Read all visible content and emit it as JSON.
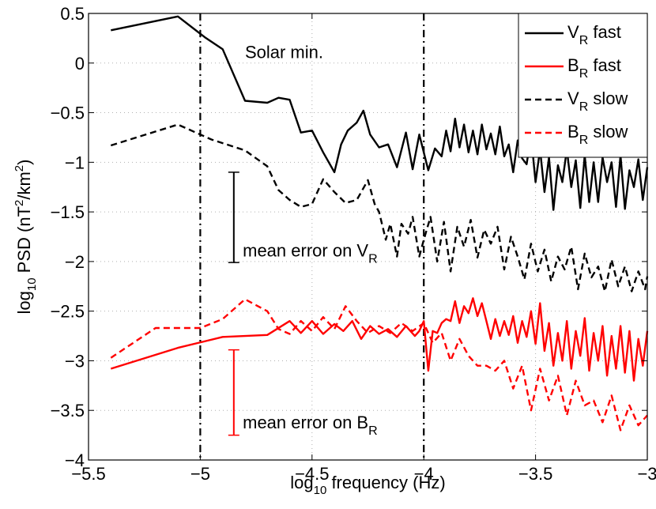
{
  "chart_data": {
    "type": "line",
    "title": "",
    "xlabel": {
      "prefix": "log",
      "sub": "10",
      "suffix": " frequency (Hz)"
    },
    "ylabel": {
      "prefix": "log",
      "sub": "10",
      "mid": " PSD (nT",
      "sup1": "2",
      "mid2": "/km",
      "sup2": "2",
      "suffix": ")"
    },
    "xlim": [
      -5.5,
      -3
    ],
    "ylim": [
      -4,
      0.5
    ],
    "xticks": [
      -5.5,
      -5,
      -4.5,
      -4,
      -3.5,
      -3
    ],
    "xtick_labels": [
      "−5.5",
      "−5",
      "−4.5",
      "−4",
      "−3.5",
      "−3"
    ],
    "yticks": [
      0.5,
      0,
      -0.5,
      -1,
      -1.5,
      -2,
      -2.5,
      -3,
      -3.5,
      -4
    ],
    "ytick_labels": [
      "0.5",
      "0",
      "−0.5",
      "−1",
      "−1.5",
      "−2",
      "−2.5",
      "−3",
      "−3.5",
      "−4"
    ],
    "grid": true,
    "vlines": [
      -5,
      -4
    ],
    "legend": {
      "placement": "top-right",
      "entries": [
        {
          "main": "V",
          "sub": "R",
          "rest": " fast",
          "color": "#000000",
          "dash": "solid"
        },
        {
          "main": "B",
          "sub": "R",
          "rest": " fast",
          "color": "#ff0000",
          "dash": "solid"
        },
        {
          "main": "V",
          "sub": "R",
          "rest": " slow",
          "color": "#000000",
          "dash": "dashed"
        },
        {
          "main": "B",
          "sub": "R",
          "rest": " slow",
          "color": "#ff0000",
          "dash": "dashed"
        }
      ]
    },
    "annotations": {
      "solar": {
        "text": "Solar min.",
        "x": -4.8,
        "y": 0.05
      },
      "err_v": {
        "prefix": "mean error on V",
        "sub": "R",
        "x": -4.81,
        "y": -1.95
      },
      "err_b": {
        "prefix": "mean error on B",
        "sub": "R",
        "x": -4.81,
        "y": -3.68
      }
    },
    "error_bars": [
      {
        "name": "mean error on V_R",
        "x": -4.85,
        "y1": -1.1,
        "y2": -2.01,
        "color": "#000000"
      },
      {
        "name": "mean error on B_R",
        "x": -4.85,
        "y1": -2.89,
        "y2": -3.75,
        "color": "#ff0000"
      }
    ],
    "series": [
      {
        "name": "V_R fast",
        "color": "#000000",
        "dash": "solid",
        "x": [
          -5.4,
          -5.1,
          -4.98,
          -4.9,
          -4.8,
          -4.7,
          -4.65,
          -4.6,
          -4.55,
          -4.5,
          -4.45,
          -4.4,
          -4.37,
          -4.34,
          -4.3,
          -4.27,
          -4.24,
          -4.2,
          -4.16,
          -4.12,
          -4.08,
          -4.05,
          -4.02,
          -4.0,
          -3.98,
          -3.95,
          -3.92,
          -3.9,
          -3.88,
          -3.86,
          -3.84,
          -3.82,
          -3.8,
          -3.78,
          -3.76,
          -3.74,
          -3.72,
          -3.7,
          -3.68,
          -3.66,
          -3.64,
          -3.62,
          -3.6,
          -3.58,
          -3.56,
          -3.54,
          -3.52,
          -3.5,
          -3.48,
          -3.46,
          -3.44,
          -3.42,
          -3.4,
          -3.38,
          -3.36,
          -3.34,
          -3.32,
          -3.3,
          -3.28,
          -3.26,
          -3.24,
          -3.22,
          -3.2,
          -3.18,
          -3.16,
          -3.14,
          -3.12,
          -3.1,
          -3.08,
          -3.06,
          -3.04,
          -3.02,
          -3.0
        ],
        "y": [
          0.33,
          0.47,
          0.26,
          0.14,
          -0.38,
          -0.4,
          -0.35,
          -0.37,
          -0.7,
          -0.68,
          -0.9,
          -1.1,
          -0.82,
          -0.68,
          -0.6,
          -0.48,
          -0.72,
          -0.85,
          -0.82,
          -1.05,
          -0.7,
          -1.07,
          -0.72,
          -0.9,
          -1.08,
          -0.86,
          -0.94,
          -0.68,
          -0.89,
          -0.56,
          -0.85,
          -0.62,
          -0.9,
          -0.68,
          -0.92,
          -0.62,
          -0.87,
          -0.71,
          -0.92,
          -0.64,
          -0.94,
          -0.82,
          -1.1,
          -0.78,
          -0.96,
          -1.02,
          -0.73,
          -1.2,
          -0.87,
          -1.3,
          -0.95,
          -1.48,
          -1.03,
          -1.2,
          -0.87,
          -1.25,
          -0.98,
          -1.46,
          -0.93,
          -1.4,
          -1.0,
          -1.4,
          -0.95,
          -1.2,
          -1.0,
          -1.45,
          -0.93,
          -1.47,
          -1.08,
          -1.25,
          -0.97,
          -1.38,
          -1.05
        ]
      },
      {
        "name": "B_R fast",
        "color": "#ff0000",
        "dash": "solid",
        "x": [
          -5.4,
          -5.1,
          -4.9,
          -4.7,
          -4.6,
          -4.55,
          -4.5,
          -4.45,
          -4.4,
          -4.36,
          -4.32,
          -4.28,
          -4.24,
          -4.2,
          -4.16,
          -4.12,
          -4.08,
          -4.04,
          -4.02,
          -4.0,
          -3.98,
          -3.96,
          -3.94,
          -3.92,
          -3.9,
          -3.88,
          -3.86,
          -3.84,
          -3.82,
          -3.8,
          -3.78,
          -3.76,
          -3.74,
          -3.72,
          -3.7,
          -3.68,
          -3.66,
          -3.64,
          -3.62,
          -3.6,
          -3.58,
          -3.56,
          -3.54,
          -3.52,
          -3.5,
          -3.48,
          -3.46,
          -3.44,
          -3.42,
          -3.4,
          -3.38,
          -3.36,
          -3.34,
          -3.32,
          -3.3,
          -3.28,
          -3.26,
          -3.24,
          -3.22,
          -3.2,
          -3.18,
          -3.16,
          -3.14,
          -3.12,
          -3.1,
          -3.08,
          -3.06,
          -3.04,
          -3.02,
          -3.0
        ],
        "y": [
          -3.08,
          -2.87,
          -2.76,
          -2.74,
          -2.6,
          -2.72,
          -2.6,
          -2.73,
          -2.63,
          -2.7,
          -2.6,
          -2.78,
          -2.65,
          -2.73,
          -2.68,
          -2.76,
          -2.65,
          -2.75,
          -2.7,
          -2.6,
          -3.1,
          -2.7,
          -2.72,
          -2.62,
          -2.58,
          -2.6,
          -2.4,
          -2.62,
          -2.45,
          -2.52,
          -2.37,
          -2.55,
          -2.42,
          -2.6,
          -2.78,
          -2.58,
          -2.75,
          -2.6,
          -2.74,
          -2.55,
          -2.82,
          -2.6,
          -2.76,
          -2.5,
          -2.83,
          -2.42,
          -2.9,
          -2.62,
          -3.05,
          -2.72,
          -3.0,
          -2.6,
          -3.08,
          -2.7,
          -2.95,
          -2.57,
          -3.1,
          -2.72,
          -3.0,
          -2.65,
          -3.15,
          -2.75,
          -3.08,
          -2.65,
          -3.12,
          -2.7,
          -3.2,
          -2.78,
          -3.05,
          -2.7
        ]
      },
      {
        "name": "V_R slow",
        "color": "#000000",
        "dash": "dashed",
        "x": [
          -5.4,
          -5.1,
          -4.95,
          -4.8,
          -4.7,
          -4.65,
          -4.6,
          -4.55,
          -4.5,
          -4.45,
          -4.4,
          -4.35,
          -4.3,
          -4.25,
          -4.22,
          -4.2,
          -4.17,
          -4.15,
          -4.12,
          -4.1,
          -4.07,
          -4.05,
          -4.02,
          -4.0,
          -3.97,
          -3.94,
          -3.91,
          -3.88,
          -3.85,
          -3.82,
          -3.79,
          -3.76,
          -3.73,
          -3.7,
          -3.67,
          -3.64,
          -3.61,
          -3.58,
          -3.55,
          -3.52,
          -3.49,
          -3.46,
          -3.43,
          -3.4,
          -3.37,
          -3.34,
          -3.31,
          -3.28,
          -3.25,
          -3.22,
          -3.19,
          -3.16,
          -3.13,
          -3.1,
          -3.07,
          -3.04,
          -3.01,
          -3.0
        ],
        "y": [
          -0.83,
          -0.62,
          -0.77,
          -0.88,
          -1.04,
          -1.28,
          -1.38,
          -1.45,
          -1.42,
          -1.17,
          -1.3,
          -1.41,
          -1.38,
          -1.18,
          -1.42,
          -1.5,
          -1.78,
          -1.62,
          -1.95,
          -1.62,
          -1.72,
          -1.55,
          -1.95,
          -1.78,
          -1.55,
          -2.0,
          -1.6,
          -2.1,
          -1.65,
          -1.85,
          -1.58,
          -1.96,
          -1.68,
          -1.82,
          -1.65,
          -2.08,
          -1.75,
          -1.95,
          -2.18,
          -1.82,
          -2.1,
          -1.88,
          -2.2,
          -1.95,
          -2.08,
          -1.85,
          -2.28,
          -1.92,
          -2.16,
          -2.05,
          -2.3,
          -1.98,
          -2.25,
          -2.05,
          -2.3,
          -2.1,
          -2.28,
          -2.15
        ]
      },
      {
        "name": "B_R slow",
        "color": "#ff0000",
        "dash": "dashed",
        "x": [
          -5.4,
          -5.2,
          -5.0,
          -4.9,
          -4.8,
          -4.7,
          -4.65,
          -4.6,
          -4.55,
          -4.5,
          -4.45,
          -4.4,
          -4.35,
          -4.3,
          -4.25,
          -4.2,
          -4.15,
          -4.1,
          -4.05,
          -4.0,
          -3.96,
          -3.92,
          -3.88,
          -3.84,
          -3.8,
          -3.76,
          -3.72,
          -3.68,
          -3.64,
          -3.6,
          -3.56,
          -3.52,
          -3.48,
          -3.44,
          -3.4,
          -3.36,
          -3.32,
          -3.28,
          -3.24,
          -3.2,
          -3.16,
          -3.12,
          -3.08,
          -3.04,
          -3.0
        ],
        "y": [
          -2.97,
          -2.67,
          -2.67,
          -2.58,
          -2.38,
          -2.5,
          -2.68,
          -2.73,
          -2.6,
          -2.7,
          -2.56,
          -2.68,
          -2.45,
          -2.6,
          -2.72,
          -2.65,
          -2.72,
          -2.62,
          -2.7,
          -2.62,
          -2.82,
          -2.72,
          -3.0,
          -2.78,
          -2.95,
          -3.05,
          -3.05,
          -3.1,
          -3.0,
          -3.28,
          -3.05,
          -3.5,
          -3.08,
          -3.4,
          -3.15,
          -3.55,
          -3.2,
          -3.45,
          -3.4,
          -3.62,
          -3.35,
          -3.7,
          -3.45,
          -3.65,
          -3.55
        ]
      }
    ]
  }
}
